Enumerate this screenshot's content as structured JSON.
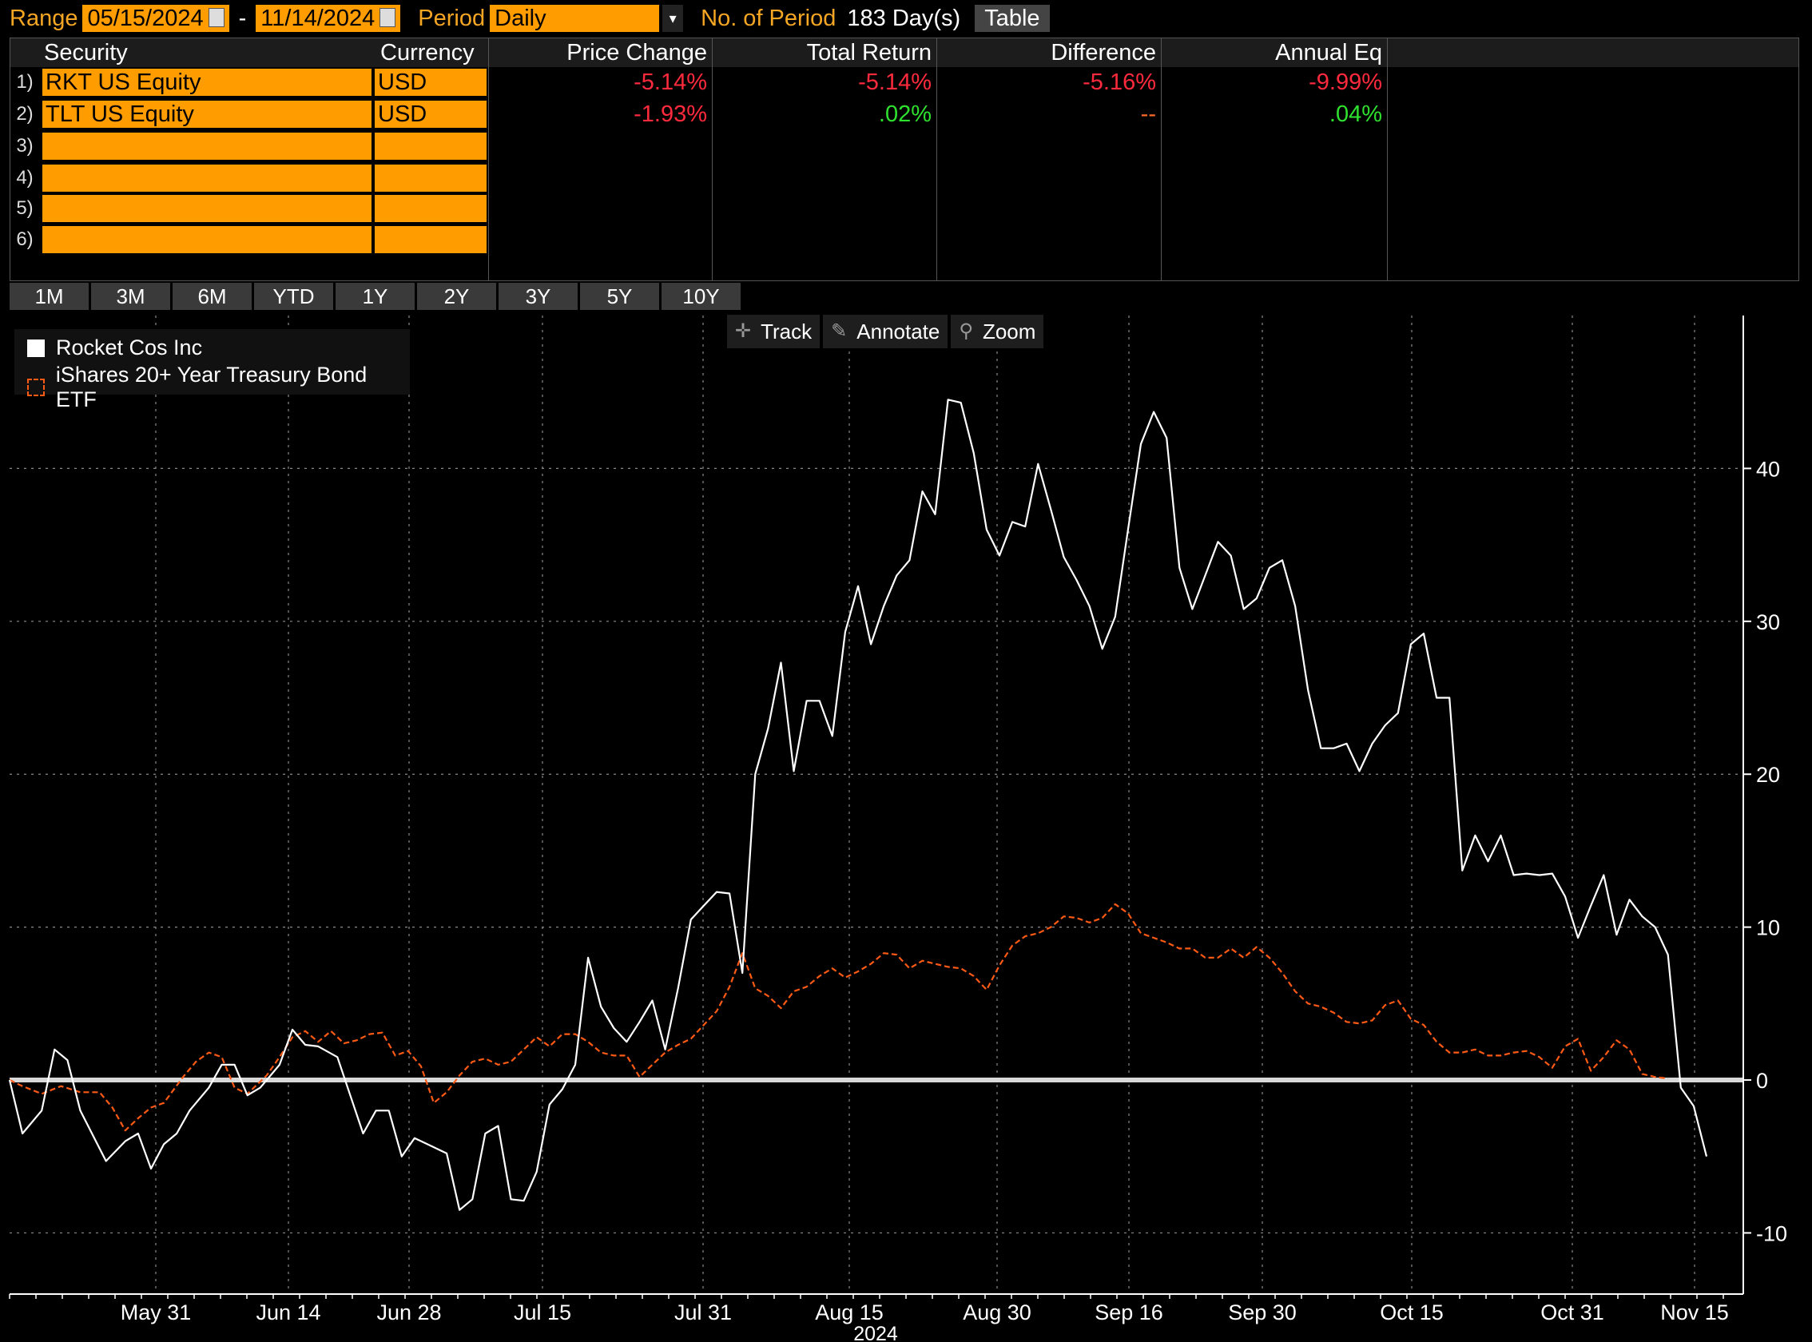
{
  "toolbar": {
    "range_label": "Range",
    "start_date": "05/15/2024",
    "dash": "-",
    "end_date": "11/14/2024",
    "period_label": "Period",
    "period_value": "Daily",
    "num_periods_label": "No. of Period",
    "num_periods_value": "183 Day(s)",
    "table_button": "Table"
  },
  "table": {
    "headers": {
      "security": "Security",
      "currency": "Currency",
      "price_change": "Price Change",
      "total_return": "Total Return",
      "difference": "Difference",
      "annual_eq": "Annual Eq"
    },
    "row_numbers": [
      "1)",
      "2)",
      "3)",
      "4)",
      "5)",
      "6)"
    ],
    "rows": [
      {
        "security": "RKT US Equity",
        "currency": "USD",
        "price_change": "-5.14%",
        "total_return": "-5.14%",
        "difference": "-5.16%",
        "annual_eq": "-9.99%"
      },
      {
        "security": "TLT US Equity",
        "currency": "USD",
        "price_change": "-1.93%",
        "total_return": ".02%",
        "difference": "--",
        "annual_eq": ".04%"
      }
    ]
  },
  "period_buttons": [
    "1M",
    "3M",
    "6M",
    "YTD",
    "1Y",
    "2Y",
    "3Y",
    "5Y",
    "10Y"
  ],
  "chart_tools": {
    "track": "Track",
    "annotate": "Annotate",
    "zoom": "Zoom"
  },
  "colors": {
    "rkt": "#ffffff",
    "tlt": "#ff5a14",
    "orange_field": "#ff9c00",
    "negative": "#ff2a3c",
    "positive": "#2fe12f"
  },
  "chart_data": {
    "type": "line",
    "xlabel": "2024",
    "ylim": [
      -14,
      50
    ],
    "x_ticks": [
      "May 31",
      "Jun 14",
      "Jun 28",
      "Jul 15",
      "Jul 31",
      "Aug 15",
      "Aug 30",
      "Sep 16",
      "Sep 30",
      "Oct 15",
      "Oct 31",
      "Nov 15"
    ],
    "y_ticks": [
      -10,
      0,
      10,
      20,
      30,
      40
    ],
    "grid": true,
    "legend": "top-left",
    "series": [
      {
        "name": "Rocket Cos Inc",
        "points": [
          [
            0,
            0
          ],
          [
            2,
            -3.5
          ],
          [
            5,
            -2
          ],
          [
            7,
            2
          ],
          [
            9,
            1.3
          ],
          [
            11,
            -2
          ],
          [
            15,
            -5.3
          ],
          [
            18,
            -4
          ],
          [
            20,
            -3.5
          ],
          [
            22,
            -5.8
          ],
          [
            24,
            -4.2
          ],
          [
            26,
            -3.5
          ],
          [
            28,
            -2
          ],
          [
            31,
            -0.5
          ],
          [
            33,
            1
          ],
          [
            35,
            1
          ],
          [
            37,
            -1
          ],
          [
            39,
            -0.5
          ],
          [
            42,
            1
          ],
          [
            44,
            3.3
          ],
          [
            46,
            2.3
          ],
          [
            48,
            2.2
          ],
          [
            51,
            1.5
          ],
          [
            53,
            -1
          ],
          [
            55,
            -3.5
          ],
          [
            57,
            -2
          ],
          [
            59,
            -2
          ],
          [
            61,
            -5
          ],
          [
            63,
            -3.8
          ],
          [
            65,
            -4.2
          ],
          [
            68,
            -4.8
          ],
          [
            70,
            -8.5
          ],
          [
            72,
            -7.8
          ],
          [
            74,
            -3.5
          ],
          [
            76,
            -3
          ],
          [
            78,
            -7.8
          ],
          [
            80,
            -7.9
          ],
          [
            82,
            -6
          ],
          [
            84,
            -1.6
          ],
          [
            86,
            -0.6
          ],
          [
            88,
            1
          ],
          [
            90,
            8
          ],
          [
            92,
            4.8
          ],
          [
            94,
            3.4
          ],
          [
            96,
            2.5
          ],
          [
            98,
            3.8
          ],
          [
            100,
            5.2
          ],
          [
            102,
            2
          ],
          [
            104,
            6
          ],
          [
            106,
            10.5
          ],
          [
            108,
            11.4
          ],
          [
            110,
            12.3
          ],
          [
            112,
            12.2
          ],
          [
            114,
            7
          ],
          [
            116,
            20
          ],
          [
            118,
            23
          ],
          [
            120,
            27.3
          ],
          [
            122,
            20.2
          ],
          [
            124,
            24.8
          ],
          [
            126,
            24.8
          ],
          [
            128,
            22.5
          ],
          [
            130,
            29.3
          ],
          [
            132,
            32.3
          ],
          [
            134,
            28.5
          ],
          [
            136,
            31
          ],
          [
            138,
            33
          ],
          [
            140,
            34
          ],
          [
            142,
            38.5
          ],
          [
            144,
            37
          ],
          [
            146,
            44.5
          ],
          [
            148,
            44.3
          ],
          [
            150,
            41
          ],
          [
            152,
            36
          ],
          [
            154,
            34.3
          ],
          [
            156,
            36.5
          ],
          [
            158,
            36.2
          ],
          [
            160,
            40.3
          ],
          [
            162,
            37.3
          ],
          [
            164,
            34.2
          ],
          [
            166,
            32.7
          ],
          [
            168,
            31
          ],
          [
            170,
            28.2
          ],
          [
            172,
            30.3
          ],
          [
            174,
            36
          ],
          [
            176,
            41.6
          ],
          [
            178,
            43.7
          ],
          [
            180,
            42
          ],
          [
            182,
            33.5
          ],
          [
            184,
            30.8
          ],
          [
            186,
            33
          ],
          [
            188,
            35.2
          ],
          [
            190,
            34.3
          ],
          [
            192,
            30.8
          ],
          [
            194,
            31.5
          ],
          [
            196,
            33.5
          ],
          [
            198,
            34
          ],
          [
            200,
            31
          ],
          [
            202,
            25.5
          ],
          [
            204,
            21.7
          ],
          [
            206,
            21.7
          ],
          [
            208,
            22
          ],
          [
            210,
            20.2
          ],
          [
            212,
            22
          ],
          [
            214,
            23.2
          ],
          [
            216,
            24
          ],
          [
            218,
            28.5
          ],
          [
            220,
            29.2
          ],
          [
            222,
            25
          ],
          [
            224,
            25
          ],
          [
            226,
            13.7
          ],
          [
            228,
            16
          ],
          [
            230,
            14.3
          ],
          [
            232,
            16
          ],
          [
            234,
            13.4
          ],
          [
            236,
            13.5
          ],
          [
            238,
            13.4
          ],
          [
            240,
            13.5
          ],
          [
            242,
            12
          ],
          [
            244,
            9.3
          ],
          [
            246,
            11.4
          ],
          [
            248,
            13.4
          ],
          [
            250,
            9.5
          ],
          [
            252,
            11.8
          ],
          [
            254,
            10.7
          ],
          [
            256,
            10
          ],
          [
            258,
            8.2
          ],
          [
            260,
            -0.5
          ],
          [
            262,
            -1.7
          ],
          [
            264,
            -5
          ]
        ]
      },
      {
        "name": "iShares 20+ Year Treasury Bond ETF",
        "points": [
          [
            0,
            0
          ],
          [
            2,
            -0.4
          ],
          [
            5,
            -0.9
          ],
          [
            8,
            -0.4
          ],
          [
            11,
            -0.8
          ],
          [
            14,
            -0.8
          ],
          [
            16,
            -1.8
          ],
          [
            18,
            -3.3
          ],
          [
            20,
            -2.5
          ],
          [
            22,
            -1.8
          ],
          [
            24,
            -1.5
          ],
          [
            27,
            0.2
          ],
          [
            29,
            1.2
          ],
          [
            31,
            1.8
          ],
          [
            33,
            1.5
          ],
          [
            35,
            -0.5
          ],
          [
            37,
            -0.9
          ],
          [
            40,
            0.3
          ],
          [
            42,
            1.5
          ],
          [
            44,
            2.8
          ],
          [
            46,
            3.2
          ],
          [
            48,
            2.5
          ],
          [
            50,
            3.2
          ],
          [
            52,
            2.4
          ],
          [
            54,
            2.6
          ],
          [
            56,
            3
          ],
          [
            58,
            3.1
          ],
          [
            60,
            1.6
          ],
          [
            62,
            1.9
          ],
          [
            64,
            0.9
          ],
          [
            66,
            -1.5
          ],
          [
            68,
            -0.8
          ],
          [
            70,
            0.3
          ],
          [
            72,
            1.2
          ],
          [
            74,
            1.4
          ],
          [
            76,
            1
          ],
          [
            78,
            1.2
          ],
          [
            80,
            2
          ],
          [
            82,
            2.8
          ],
          [
            84,
            2.2
          ],
          [
            86,
            3
          ],
          [
            88,
            3
          ],
          [
            90,
            2.5
          ],
          [
            92,
            1.8
          ],
          [
            94,
            1.6
          ],
          [
            96,
            1.6
          ],
          [
            98,
            0.2
          ],
          [
            100,
            1
          ],
          [
            102,
            1.8
          ],
          [
            104,
            2.3
          ],
          [
            106,
            2.7
          ],
          [
            108,
            3.6
          ],
          [
            110,
            4.5
          ],
          [
            112,
            6.1
          ],
          [
            114,
            8.3
          ],
          [
            116,
            6
          ],
          [
            118,
            5.5
          ],
          [
            120,
            4.7
          ],
          [
            122,
            5.8
          ],
          [
            124,
            6.1
          ],
          [
            126,
            6.8
          ],
          [
            128,
            7.3
          ],
          [
            130,
            6.7
          ],
          [
            132,
            7.1
          ],
          [
            134,
            7.6
          ],
          [
            136,
            8.3
          ],
          [
            138,
            8.2
          ],
          [
            140,
            7.3
          ],
          [
            142,
            7.8
          ],
          [
            144,
            7.6
          ],
          [
            146,
            7.4
          ],
          [
            148,
            7.3
          ],
          [
            150,
            6.8
          ],
          [
            152,
            5.9
          ],
          [
            154,
            7.5
          ],
          [
            156,
            8.8
          ],
          [
            158,
            9.4
          ],
          [
            160,
            9.6
          ],
          [
            162,
            10
          ],
          [
            164,
            10.7
          ],
          [
            166,
            10.6
          ],
          [
            168,
            10.3
          ],
          [
            170,
            10.6
          ],
          [
            172,
            11.5
          ],
          [
            174,
            10.9
          ],
          [
            176,
            9.6
          ],
          [
            178,
            9.3
          ],
          [
            180,
            9
          ],
          [
            182,
            8.6
          ],
          [
            184,
            8.6
          ],
          [
            186,
            8
          ],
          [
            188,
            8
          ],
          [
            190,
            8.6
          ],
          [
            192,
            8
          ],
          [
            194,
            8.7
          ],
          [
            196,
            8
          ],
          [
            198,
            7
          ],
          [
            200,
            5.8
          ],
          [
            202,
            5
          ],
          [
            204,
            4.8
          ],
          [
            206,
            4.4
          ],
          [
            208,
            3.8
          ],
          [
            210,
            3.7
          ],
          [
            212,
            3.9
          ],
          [
            214,
            4.9
          ],
          [
            216,
            5.2
          ],
          [
            218,
            4
          ],
          [
            220,
            3.6
          ],
          [
            222,
            2.5
          ],
          [
            224,
            1.8
          ],
          [
            226,
            1.8
          ],
          [
            228,
            2
          ],
          [
            230,
            1.6
          ],
          [
            232,
            1.6
          ],
          [
            234,
            1.8
          ],
          [
            236,
            1.9
          ],
          [
            238,
            1.5
          ],
          [
            240,
            0.8
          ],
          [
            242,
            2.2
          ],
          [
            244,
            2.7
          ],
          [
            246,
            0.6
          ],
          [
            248,
            1.5
          ],
          [
            250,
            2.6
          ],
          [
            252,
            2
          ],
          [
            254,
            0.4
          ],
          [
            256,
            0.2
          ],
          [
            258,
            0.1
          ]
        ]
      }
    ]
  }
}
